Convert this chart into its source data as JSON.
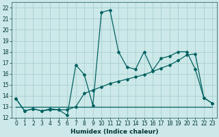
{
  "title": "",
  "xlabel": "Humidex (Indice chaleur)",
  "ylabel": "",
  "bg_color": "#cce8e8",
  "grid_color": "#aacfcf",
  "line_color": "#006060",
  "xlim": [
    -0.5,
    23.5
  ],
  "ylim": [
    12,
    22.5
  ],
  "yticks": [
    12,
    13,
    14,
    15,
    16,
    17,
    18,
    19,
    20,
    21,
    22
  ],
  "xticks": [
    0,
    1,
    2,
    3,
    4,
    5,
    6,
    7,
    8,
    9,
    10,
    11,
    12,
    13,
    14,
    15,
    16,
    17,
    18,
    19,
    20,
    21,
    22,
    23
  ],
  "series1_x": [
    0,
    1,
    2,
    3,
    4,
    5,
    6,
    7,
    8,
    9,
    10,
    11,
    12,
    13,
    14,
    15,
    16,
    17,
    18,
    19,
    20,
    21,
    22,
    23
  ],
  "series1_y": [
    13.7,
    12.6,
    12.8,
    12.6,
    12.7,
    12.7,
    12.2,
    16.8,
    15.9,
    13.1,
    21.6,
    21.8,
    18.0,
    16.6,
    16.4,
    18.0,
    16.3,
    17.4,
    17.6,
    18.0,
    18.0,
    16.4,
    13.8,
    13.3
  ],
  "series2_x": [
    0,
    1,
    2,
    3,
    4,
    5,
    6,
    7,
    8,
    9,
    10,
    11,
    12,
    13,
    14,
    15,
    16,
    17,
    18,
    19,
    20,
    21,
    22,
    23
  ],
  "series2_y": [
    13.7,
    12.6,
    12.8,
    12.6,
    12.8,
    12.7,
    12.7,
    13.0,
    14.2,
    14.5,
    14.8,
    15.1,
    15.3,
    15.5,
    15.7,
    15.9,
    16.2,
    16.5,
    16.8,
    17.2,
    17.7,
    17.8,
    13.8,
    13.3
  ],
  "series3_x": [
    0,
    1,
    2,
    3,
    4,
    5,
    6,
    7,
    8,
    9,
    10,
    11,
    12,
    13,
    14,
    15,
    16,
    17,
    18,
    19,
    20,
    21,
    22,
    23
  ],
  "series3_y": [
    13.0,
    13.0,
    13.0,
    13.0,
    13.0,
    13.0,
    13.0,
    13.0,
    13.0,
    13.0,
    13.0,
    13.0,
    13.0,
    13.0,
    13.0,
    13.0,
    13.0,
    13.0,
    13.0,
    13.0,
    13.0,
    13.0,
    13.0,
    13.0
  ],
  "xlabel_fontsize": 6.5,
  "tick_fontsize": 5.5
}
